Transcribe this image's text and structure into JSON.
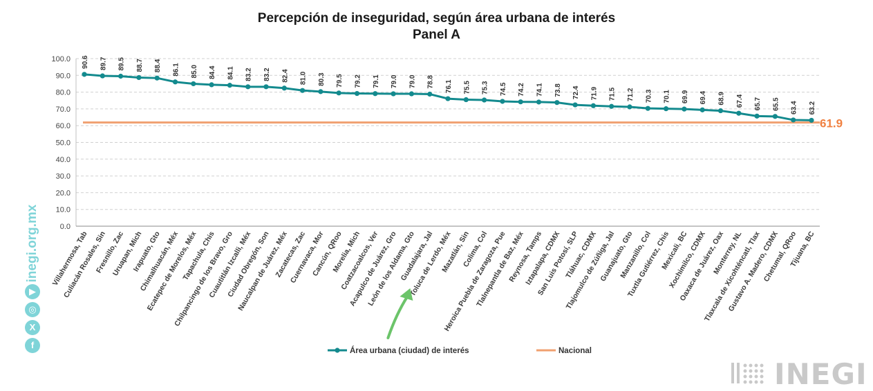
{
  "chart_data": {
    "type": "line",
    "title": "Percepción de inseguridad, según área urbana de interés",
    "subtitle": "Panel A",
    "ylim": [
      0,
      100
    ],
    "yticks": [
      "0.0",
      "10.0",
      "20.0",
      "30.0",
      "40.0",
      "50.0",
      "60.0",
      "70.0",
      "80.0",
      "90.0",
      "100.0"
    ],
    "grid": true,
    "legend_position": "bottom-center",
    "categories": [
      "Villahermosa, Tab",
      "Culiacán Rosales, Sin",
      "Fresnillo, Zac",
      "Uruapan, Mich",
      "Irapuato, Gto",
      "Chimalhuacán, Méx",
      "Ecatepec de Morelos, Méx",
      "Tapachula, Chis",
      "Chilpancingo de los Bravo, Gro",
      "Cuautitlán Izcalli, Méx",
      "Ciudad Obregón, Son",
      "Naucalpan de Juárez, Méx",
      "Zacatecas, Zac",
      "Cuernavaca, Mor",
      "Cancún, QRoo",
      "Morelia, Mich",
      "Coatzacoalcos, Ver",
      "Acapulco de Juárez, Gro",
      "León de los Aldama, Gto",
      "Guadalajara, Jal",
      "Toluca de Lerdo, Méx",
      "Mazatlán, Sin",
      "Colima, Col",
      "Heroica Puebla de Zaragoza, Pue",
      "Tlalnepantla de Baz, Méx",
      "Reynosa, Tamps",
      "Iztapalapa, CDMX",
      "San Luis Potosí, SLP",
      "Tláhuac, CDMX",
      "Tlajomulco de Zúñiga, Jal",
      "Guanajuato, Gto",
      "Manzanillo, Col",
      "Tuxtla Gutiérrez, Chis",
      "Mexicali, BC",
      "Xochimilco, CDMX",
      "Oaxaca de Juárez, Oax",
      "Monterrey, NL",
      "Tlaxcala de Xicohténcatl, Tlax",
      "Gustavo A. Madero, CDMX",
      "Chetumal, QRoo",
      "Tijuana, BC"
    ],
    "series": [
      {
        "name": "Área urbana (ciudad) de interés",
        "color": "#138a8e",
        "values": [
          90.6,
          89.7,
          89.5,
          88.7,
          88.4,
          86.1,
          85.0,
          84.4,
          84.1,
          83.2,
          83.2,
          82.4,
          81.0,
          80.3,
          79.5,
          79.2,
          79.1,
          79.0,
          79.0,
          78.8,
          76.1,
          75.5,
          75.3,
          74.5,
          74.2,
          74.1,
          73.8,
          72.4,
          71.9,
          71.5,
          71.2,
          70.3,
          70.1,
          69.9,
          69.4,
          68.9,
          67.4,
          65.7,
          65.5,
          63.4,
          63.2
        ],
        "labels": [
          "90.6",
          "89.7",
          "89.5",
          "88.7",
          "88.4",
          "86.1",
          "85.0",
          "84.4",
          "84.1",
          "83.2",
          "83.2",
          "82.4",
          "81.0",
          "80.3",
          "79.5",
          "79.2",
          "79.1",
          "79.0",
          "79.0",
          "78.8",
          "76.1",
          "75.5",
          "75.3",
          "74.5",
          "74.2",
          "74.1",
          "73.8",
          "72.4",
          "71.9",
          "71.5",
          "71.2",
          "70.3",
          "70.1",
          "69.9",
          "69.4",
          "68.9",
          "67.4",
          "65.7",
          "65.5",
          "63.4",
          "63.2"
        ]
      },
      {
        "name": "Nacional",
        "color": "#f0a070",
        "value": 61.9,
        "label": "61.9"
      }
    ],
    "annotations": [
      {
        "type": "arrow",
        "color": "#6cc46a",
        "points_to": "León de los Aldama, Gto"
      }
    ]
  },
  "colors": {
    "label_color": "#f08040",
    "brand": "#7fd4d8"
  },
  "brand": {
    "url": "inegi.org.mx",
    "logo_text": "INEGI",
    "icons": [
      "facebook-icon",
      "x-icon",
      "instagram-icon",
      "youtube-icon"
    ]
  }
}
